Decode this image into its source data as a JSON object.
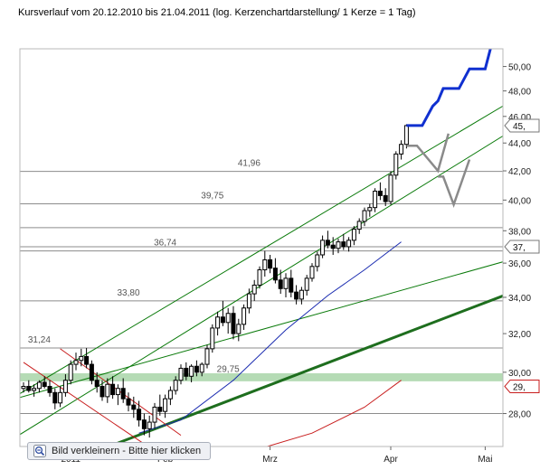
{
  "title": "Kursverlauf vom 20.12.2010 bis 21.04.2011 (log. Kerzenchartdarstellung/ 1 Kerze = 1 Tag)",
  "zoom_button": {
    "label": "Bild verkleinern - Bitte hier klicken",
    "icon": "magnifier-minus-icon"
  },
  "colors": {
    "candle": "#000000",
    "grid": "#8c8c8c",
    "green_line": "#0a7a0a",
    "dark_green": "#1e6e1e",
    "blue_ma": "#1a2bb0",
    "red_ma": "#c81e1e",
    "forecast_blue": "#1030d0",
    "forecast_gray": "#8a8a8a",
    "support_band": "#9ccf9c"
  },
  "chart_data": {
    "type": "candlestick",
    "scale": "log",
    "ylim": [
      26.5,
      51.5
    ],
    "y_ticks": [
      "28,00",
      "30,00",
      "32,00",
      "34,00",
      "36,00",
      "38,00",
      "40,00",
      "42,00",
      "44,00",
      "46,00",
      "48,00",
      "50,00"
    ],
    "y_tick_values": [
      28,
      30,
      32,
      34,
      36,
      38,
      40,
      42,
      44,
      46,
      48,
      50
    ],
    "x_tick_labels": [
      {
        "label": "2011",
        "index": 9
      },
      {
        "label": "Feb",
        "index": 27
      },
      {
        "label": "Mrz",
        "index": 47
      },
      {
        "label": "Apr",
        "index": 70
      },
      {
        "label": "Mai",
        "index": 88
      }
    ],
    "right_labels": [
      {
        "text": "45,",
        "value": 45.3,
        "style": "gray"
      },
      {
        "text": "37,",
        "value": 37.0,
        "style": "gray"
      },
      {
        "text": "29,",
        "value": 29.3,
        "style": "red"
      }
    ],
    "annotations": [
      {
        "text": "31,24",
        "index": 3,
        "value": 31.24
      },
      {
        "text": "33,80",
        "index": 20,
        "value": 33.8
      },
      {
        "text": "36,74",
        "index": 27,
        "value": 36.74
      },
      {
        "text": "39,75",
        "index": 36,
        "value": 39.75
      },
      {
        "text": "41,96",
        "index": 43,
        "value": 41.96
      },
      {
        "text": "29,75",
        "index": 39,
        "value": 29.75
      }
    ],
    "horizontal_lines": [
      28.0,
      31.24,
      33.8,
      36.74,
      37.0,
      38.2,
      39.75,
      41.96
    ],
    "support_band": [
      29.55,
      29.95
    ],
    "ohlc": [
      [
        29.2,
        29.5,
        29.0,
        29.3
      ],
      [
        29.3,
        29.6,
        29.0,
        29.1
      ],
      [
        29.1,
        29.4,
        28.8,
        29.2
      ],
      [
        29.2,
        29.6,
        29.0,
        29.5
      ],
      [
        29.5,
        29.8,
        29.2,
        29.3
      ],
      [
        29.3,
        29.6,
        28.8,
        29.0
      ],
      [
        29.0,
        29.2,
        28.2,
        28.5
      ],
      [
        28.5,
        29.3,
        28.3,
        29.0
      ],
      [
        29.0,
        29.9,
        28.8,
        29.6
      ],
      [
        29.6,
        30.6,
        29.4,
        30.4
      ],
      [
        30.4,
        31.0,
        30.1,
        30.6
      ],
      [
        30.6,
        31.2,
        30.3,
        30.8
      ],
      [
        30.8,
        31.24,
        30.2,
        30.4
      ],
      [
        30.4,
        30.6,
        29.4,
        29.6
      ],
      [
        29.6,
        30.0,
        29.0,
        29.3
      ],
      [
        29.3,
        29.6,
        28.6,
        28.8
      ],
      [
        28.8,
        29.7,
        28.5,
        29.4
      ],
      [
        29.4,
        29.8,
        28.7,
        28.9
      ],
      [
        28.9,
        29.4,
        28.4,
        29.2
      ],
      [
        29.2,
        29.7,
        28.5,
        28.7
      ],
      [
        28.7,
        29.0,
        28.1,
        28.4
      ],
      [
        28.4,
        28.8,
        27.8,
        28.2
      ],
      [
        28.2,
        28.6,
        27.4,
        27.7
      ],
      [
        27.7,
        28.0,
        27.0,
        27.3
      ],
      [
        27.3,
        27.9,
        26.9,
        27.6
      ],
      [
        27.6,
        28.5,
        27.3,
        28.3
      ],
      [
        28.3,
        28.9,
        27.9,
        28.1
      ],
      [
        28.1,
        28.9,
        27.8,
        28.7
      ],
      [
        28.7,
        29.3,
        28.4,
        29.1
      ],
      [
        29.1,
        29.8,
        28.9,
        29.6
      ],
      [
        29.6,
        30.4,
        29.4,
        30.2
      ],
      [
        30.2,
        30.5,
        29.6,
        29.8
      ],
      [
        29.8,
        30.4,
        29.5,
        30.3
      ],
      [
        30.3,
        30.6,
        29.8,
        30.0
      ],
      [
        30.0,
        30.5,
        29.8,
        30.4
      ],
      [
        30.4,
        31.4,
        30.2,
        31.2
      ],
      [
        31.2,
        32.5,
        31.0,
        32.3
      ],
      [
        32.3,
        33.2,
        31.9,
        32.9
      ],
      [
        32.9,
        33.8,
        32.4,
        32.6
      ],
      [
        32.6,
        33.4,
        32.0,
        33.1
      ],
      [
        33.1,
        33.5,
        31.7,
        32.0
      ],
      [
        32.0,
        32.8,
        31.6,
        32.5
      ],
      [
        32.5,
        33.6,
        32.2,
        33.4
      ],
      [
        33.4,
        34.5,
        33.1,
        34.2
      ],
      [
        34.2,
        35.0,
        33.8,
        34.7
      ],
      [
        34.7,
        35.8,
        34.5,
        35.6
      ],
      [
        35.6,
        36.74,
        35.2,
        36.2
      ],
      [
        36.2,
        36.5,
        35.4,
        35.7
      ],
      [
        35.7,
        36.3,
        34.8,
        35.0
      ],
      [
        35.0,
        35.6,
        34.2,
        34.5
      ],
      [
        34.5,
        35.4,
        34.0,
        35.1
      ],
      [
        35.1,
        35.6,
        34.0,
        34.3
      ],
      [
        34.3,
        34.7,
        33.6,
        33.9
      ],
      [
        33.9,
        34.6,
        33.6,
        34.4
      ],
      [
        34.4,
        35.3,
        34.1,
        35.1
      ],
      [
        35.1,
        36.0,
        34.9,
        35.8
      ],
      [
        35.8,
        36.7,
        35.5,
        36.5
      ],
      [
        36.5,
        37.7,
        36.3,
        37.4
      ],
      [
        37.4,
        38.0,
        36.9,
        37.1
      ],
      [
        37.1,
        37.6,
        36.5,
        36.9
      ],
      [
        36.9,
        37.5,
        36.6,
        37.3
      ],
      [
        37.3,
        37.8,
        36.8,
        37.0
      ],
      [
        37.0,
        37.6,
        36.7,
        37.4
      ],
      [
        37.4,
        38.3,
        37.1,
        38.1
      ],
      [
        38.1,
        38.8,
        37.8,
        38.6
      ],
      [
        38.6,
        39.5,
        38.3,
        39.3
      ],
      [
        39.3,
        39.75,
        38.9,
        39.5
      ],
      [
        39.5,
        40.8,
        39.2,
        40.6
      ],
      [
        40.6,
        41.2,
        40.0,
        40.3
      ],
      [
        40.3,
        40.8,
        39.6,
        39.9
      ],
      [
        39.9,
        41.96,
        39.7,
        41.7
      ],
      [
        41.7,
        43.4,
        41.4,
        43.2
      ],
      [
        43.2,
        44.2,
        42.8,
        43.9
      ],
      [
        43.9,
        45.4,
        43.6,
        45.3
      ]
    ],
    "ma_blue": [
      [
        22,
        27.1
      ],
      [
        30,
        27.7
      ],
      [
        40,
        29.6
      ],
      [
        50,
        32.2
      ],
      [
        58,
        34.1
      ],
      [
        65,
        35.6
      ],
      [
        72,
        37.3
      ]
    ],
    "ma_red": [
      [
        45,
        26.4
      ],
      [
        55,
        27.1
      ],
      [
        65,
        28.3
      ],
      [
        72,
        29.6
      ]
    ],
    "trend_lines": [
      {
        "color": "green_line",
        "width": 1,
        "points": [
          [
            -3,
            28.6
          ],
          [
            95,
            47.7
          ]
        ]
      },
      {
        "color": "green_line",
        "width": 1,
        "points": [
          [
            -3,
            26.7
          ],
          [
            95,
            45.4
          ]
        ]
      },
      {
        "color": "green_line",
        "width": 1,
        "points": [
          [
            -3,
            28.6
          ],
          [
            95,
            36.4
          ]
        ]
      },
      {
        "color": "dark_green",
        "width": 3,
        "points": [
          [
            14,
            26.3
          ],
          [
            95,
            34.5
          ]
        ]
      },
      {
        "color": "red_thin",
        "width": 1,
        "points": [
          [
            7,
            31.2
          ],
          [
            30,
            27.0
          ]
        ]
      },
      {
        "color": "red_thin",
        "width": 1,
        "points": [
          [
            0,
            30.5
          ],
          [
            25,
            26.3
          ]
        ]
      }
    ],
    "forecast_blue": [
      [
        73,
        45.3
      ],
      [
        76,
        45.3
      ],
      [
        78,
        46.8
      ],
      [
        79,
        47.2
      ],
      [
        80,
        48.2
      ],
      [
        83,
        48.2
      ],
      [
        85,
        49.8
      ],
      [
        88,
        49.8
      ],
      [
        89,
        51.5
      ]
    ],
    "forecast_gray": [
      [
        [
          73,
          43.8
        ],
        [
          75,
          43.8
        ],
        [
          79,
          42.0
        ],
        [
          81,
          44.7
        ]
      ],
      [
        [
          79,
          41.6
        ],
        [
          80,
          41.6
        ],
        [
          82,
          39.7
        ],
        [
          85,
          42.8
        ]
      ]
    ]
  }
}
